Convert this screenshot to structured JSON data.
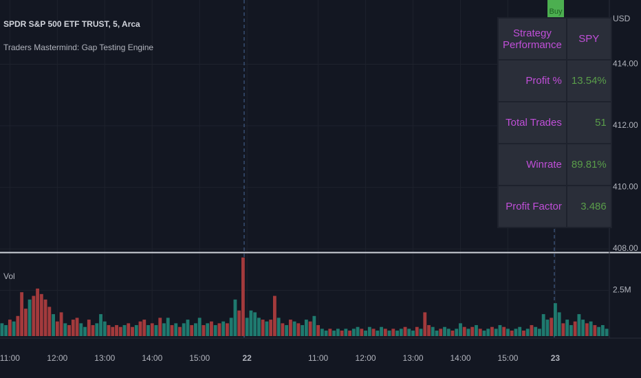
{
  "chart_data": {
    "type": "bar",
    "title": "SPDR S&P 500 ETF TRUST, 5, Arca",
    "subtitle": "Traders Mastermind: Gap Testing Engine",
    "price_unit": "USD",
    "price_ylim": [
      407.89,
      416.09
    ],
    "price_yticks": [
      {
        "value": 408,
        "label": "408.00"
      },
      {
        "value": 410,
        "label": "410.00"
      },
      {
        "value": 412,
        "label": "412.00"
      },
      {
        "value": 414,
        "label": "414.00"
      }
    ],
    "y_label": "Vol",
    "ylim": [
      0,
      4.55
    ],
    "yticks": [
      {
        "value": 2.5,
        "label": "2.5M"
      }
    ],
    "xlim": [
      -0.5,
      153.5
    ],
    "xticks": [
      {
        "value": 2,
        "label": "11:00"
      },
      {
        "value": 14,
        "label": "12:00"
      },
      {
        "value": 26,
        "label": "13:00"
      },
      {
        "value": 38,
        "label": "14:00"
      },
      {
        "value": 50,
        "label": "15:00"
      },
      {
        "value": 62,
        "label": "22"
      },
      {
        "value": 80,
        "label": "11:00"
      },
      {
        "value": 92,
        "label": "12:00"
      },
      {
        "value": 104,
        "label": "13:00"
      },
      {
        "value": 116,
        "label": "14:00"
      },
      {
        "value": 128,
        "label": "15:00"
      },
      {
        "value": 140,
        "label": "23"
      }
    ],
    "up_color": "#1f7a6f",
    "down_color": "#a33a3c",
    "grid": true,
    "values": [
      0.7,
      0.6,
      0.9,
      0.8,
      1.1,
      2.4,
      1.5,
      2.0,
      2.2,
      2.6,
      2.3,
      2.0,
      1.6,
      1.2,
      0.8,
      1.3,
      0.7,
      0.6,
      0.9,
      1.0,
      0.7,
      0.5,
      0.9,
      0.6,
      0.7,
      1.2,
      0.8,
      0.6,
      0.5,
      0.6,
      0.5,
      0.6,
      0.7,
      0.5,
      0.6,
      0.8,
      0.9,
      0.6,
      0.7,
      0.6,
      1.0,
      0.7,
      1.0,
      0.6,
      0.7,
      0.5,
      0.7,
      0.9,
      0.6,
      0.7,
      1.0,
      0.6,
      0.7,
      0.8,
      0.6,
      0.7,
      0.8,
      0.7,
      1.0,
      2.0,
      1.4,
      4.3,
      1.0,
      1.4,
      1.3,
      1.0,
      0.9,
      0.8,
      0.9,
      2.2,
      1.0,
      0.7,
      0.6,
      0.9,
      0.8,
      0.7,
      0.6,
      0.9,
      0.8,
      1.1,
      0.6,
      0.4,
      0.3,
      0.4,
      0.3,
      0.4,
      0.3,
      0.4,
      0.3,
      0.4,
      0.5,
      0.4,
      0.3,
      0.5,
      0.4,
      0.3,
      0.5,
      0.4,
      0.3,
      0.4,
      0.3,
      0.4,
      0.5,
      0.4,
      0.3,
      0.5,
      0.4,
      1.3,
      0.6,
      0.5,
      0.3,
      0.4,
      0.5,
      0.4,
      0.3,
      0.4,
      0.7,
      0.5,
      0.4,
      0.5,
      0.6,
      0.4,
      0.3,
      0.4,
      0.5,
      0.4,
      0.6,
      0.5,
      0.4,
      0.3,
      0.4,
      0.5,
      0.3,
      0.4,
      0.6,
      0.5,
      0.4,
      1.2,
      0.9,
      1.0,
      1.8,
      1.3,
      0.7,
      0.9,
      0.6,
      0.8,
      1.2,
      0.9,
      0.7,
      0.8,
      0.6,
      0.5,
      0.6,
      0.4
    ],
    "up": [
      1,
      1,
      0,
      1,
      0,
      0,
      0,
      1,
      0,
      0,
      0,
      0,
      0,
      1,
      0,
      0,
      1,
      0,
      0,
      0,
      1,
      1,
      0,
      0,
      1,
      1,
      1,
      0,
      0,
      0,
      0,
      1,
      0,
      0,
      1,
      0,
      0,
      1,
      0,
      1,
      0,
      1,
      1,
      0,
      1,
      0,
      1,
      1,
      0,
      1,
      1,
      0,
      1,
      0,
      1,
      0,
      1,
      0,
      1,
      1,
      0,
      0,
      1,
      1,
      1,
      1,
      0,
      1,
      0,
      0,
      1,
      0,
      1,
      0,
      1,
      0,
      1,
      1,
      0,
      1,
      0,
      1,
      1,
      0,
      1,
      1,
      0,
      1,
      0,
      1,
      1,
      0,
      1,
      1,
      0,
      1,
      1,
      0,
      1,
      0,
      1,
      1,
      0,
      1,
      1,
      0,
      1,
      0,
      0,
      1,
      1,
      0,
      1,
      1,
      0,
      1,
      1,
      0,
      1,
      0,
      1,
      0,
      1,
      1,
      0,
      1,
      1,
      0,
      1,
      0,
      1,
      1,
      0,
      1,
      0,
      1,
      1,
      1,
      1,
      0,
      1,
      1,
      0,
      1,
      1,
      0,
      1,
      1,
      0,
      1,
      0,
      1,
      1,
      1
    ]
  },
  "signal": "Buy",
  "table": {
    "header": [
      "Strategy Performance",
      "SPY"
    ],
    "rows": [
      [
        "Profit %",
        "13.54%"
      ],
      [
        "Total Trades",
        "51"
      ],
      [
        "Winrate",
        "89.81%"
      ],
      [
        "Profit Factor",
        "3.486"
      ]
    ]
  }
}
